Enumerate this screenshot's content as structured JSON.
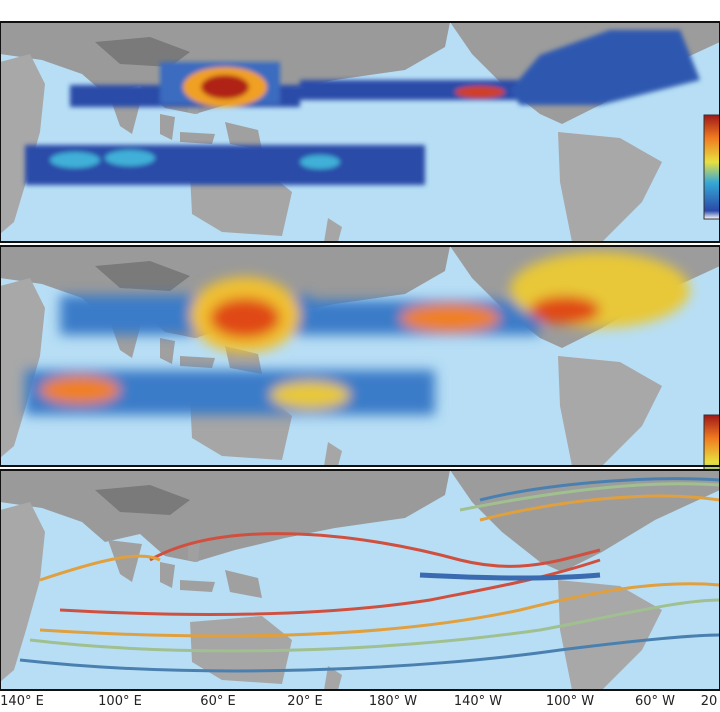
{
  "x_axis_labels": [
    "140° E",
    "100° E",
    "60° E",
    "20° E",
    "180° W",
    "140° W",
    "100° W",
    "60° W",
    "20"
  ]
}
